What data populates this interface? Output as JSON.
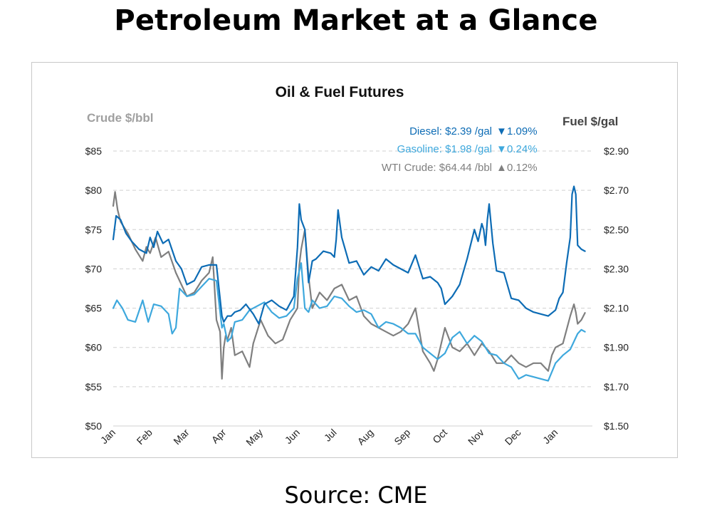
{
  "page_title": "Petroleum Market at a Glance",
  "source_label": "Source: CME",
  "colors": {
    "diesel": "#0d6cb5",
    "gasoline": "#3ea8dd",
    "crude": "#7f7f7f",
    "grid": "#d0d0d0"
  },
  "chart_data": {
    "type": "line",
    "title": "Oil & Fuel Futures",
    "y_left_label": "Crude $/bbl",
    "y_right_label": "Fuel $/gal",
    "y_left_range": [
      50,
      85
    ],
    "y_right_range": [
      1.5,
      2.9
    ],
    "y_left_ticks": [
      "$50",
      "$55",
      "$60",
      "$65",
      "$70",
      "$75",
      "$80",
      "$85"
    ],
    "y_right_ticks": [
      "$1.50",
      "$1.70",
      "$1.90",
      "$2.10",
      "$2.30",
      "$2.50",
      "$2.70",
      "$2.90"
    ],
    "months": [
      "Jan",
      "Feb",
      "Mar",
      "Apr",
      "May",
      "Jun",
      "Jul",
      "Aug",
      "Sep",
      "Oct",
      "Nov",
      "Dec",
      "Jan"
    ],
    "x_range": [
      0,
      13
    ],
    "grid": "horizontal dashed",
    "annotations": [
      {
        "label": "Diesel:",
        "value": "$2.39 /gal",
        "arrow": "▼",
        "change": "1.09%"
      },
      {
        "label": "Gasoline:",
        "value": "$1.98 /gal",
        "arrow": "▼",
        "change": "0.24%"
      },
      {
        "label": "WTI Crude:",
        "value": "$64.44 /bbl",
        "arrow": "▲",
        "change": "0.12%"
      }
    ],
    "series": [
      {
        "axis": "right",
        "x": [
          0,
          0.08,
          0.2,
          0.35,
          0.5,
          0.7,
          0.9,
          1.0,
          1.1,
          1.2,
          1.35,
          1.5,
          1.7,
          1.85,
          2.0,
          2.2,
          2.4,
          2.6,
          2.8,
          2.95,
          3.0,
          3.1,
          3.2,
          3.3,
          3.45,
          3.6,
          3.8,
          3.95,
          4.1,
          4.3,
          4.5,
          4.7,
          4.9,
          5.0,
          5.05,
          5.1,
          5.2,
          5.3,
          5.4,
          5.5,
          5.6,
          5.7,
          5.9,
          6.0,
          6.05,
          6.1,
          6.2,
          6.4,
          6.6,
          6.8,
          7.0,
          7.2,
          7.4,
          7.6,
          7.8,
          8.0,
          8.2,
          8.4,
          8.6,
          8.8,
          8.9,
          9.0,
          9.2,
          9.4,
          9.6,
          9.8,
          9.9,
          10.0,
          10.05,
          10.1,
          10.15,
          10.2,
          10.3,
          10.4,
          10.6,
          10.8,
          11.0,
          11.2,
          11.4,
          11.6,
          11.8,
          12.0,
          12.1,
          12.2,
          12.3,
          12.4,
          12.45,
          12.5,
          12.55,
          12.6,
          12.7,
          12.8
        ],
        "values": [
          2.45,
          2.57,
          2.55,
          2.48,
          2.44,
          2.4,
          2.38,
          2.46,
          2.41,
          2.49,
          2.43,
          2.45,
          2.34,
          2.3,
          2.22,
          2.24,
          2.31,
          2.32,
          2.32,
          2.06,
          2.03,
          2.06,
          2.06,
          2.08,
          2.09,
          2.12,
          2.07,
          2.02,
          2.12,
          2.14,
          2.11,
          2.09,
          2.16,
          2.41,
          2.63,
          2.55,
          2.5,
          2.23,
          2.34,
          2.35,
          2.37,
          2.39,
          2.38,
          2.36,
          2.45,
          2.6,
          2.46,
          2.33,
          2.34,
          2.27,
          2.31,
          2.29,
          2.35,
          2.32,
          2.3,
          2.28,
          2.37,
          2.25,
          2.26,
          2.23,
          2.2,
          2.12,
          2.16,
          2.22,
          2.35,
          2.5,
          2.44,
          2.53,
          2.5,
          2.42,
          2.55,
          2.63,
          2.43,
          2.29,
          2.28,
          2.15,
          2.14,
          2.1,
          2.08,
          2.07,
          2.06,
          2.09,
          2.15,
          2.18,
          2.33,
          2.46,
          2.68,
          2.72,
          2.68,
          2.42,
          2.4,
          2.39
        ],
        "name": "Diesel"
      },
      {
        "axis": "right",
        "x": [
          0,
          0.1,
          0.25,
          0.4,
          0.6,
          0.8,
          0.95,
          1.1,
          1.3,
          1.5,
          1.6,
          1.7,
          1.8,
          2.0,
          2.2,
          2.4,
          2.6,
          2.8,
          2.95,
          3.0,
          3.1,
          3.2,
          3.3,
          3.5,
          3.7,
          3.9,
          4.1,
          4.3,
          4.5,
          4.7,
          4.9,
          5.0,
          5.1,
          5.2,
          5.3,
          5.4,
          5.6,
          5.8,
          6.0,
          6.2,
          6.4,
          6.6,
          6.8,
          7.0,
          7.2,
          7.4,
          7.6,
          7.8,
          8.0,
          8.2,
          8.4,
          8.6,
          8.8,
          9.0,
          9.2,
          9.4,
          9.6,
          9.8,
          10.0,
          10.2,
          10.4,
          10.6,
          10.8,
          11.0,
          11.1,
          11.2,
          11.4,
          11.6,
          11.8,
          12.0,
          12.2,
          12.4,
          12.6,
          12.7,
          12.8
        ],
        "values": [
          2.1,
          2.14,
          2.1,
          2.04,
          2.03,
          2.14,
          2.03,
          2.12,
          2.11,
          2.07,
          1.97,
          2.0,
          2.2,
          2.16,
          2.17,
          2.21,
          2.25,
          2.24,
          2.0,
          2.02,
          1.93,
          1.95,
          2.03,
          2.04,
          2.09,
          2.11,
          2.13,
          2.08,
          2.05,
          2.06,
          2.1,
          2.25,
          2.33,
          2.1,
          2.08,
          2.14,
          2.1,
          2.11,
          2.16,
          2.15,
          2.11,
          2.08,
          2.09,
          2.07,
          2.0,
          2.03,
          2.02,
          2.0,
          1.97,
          1.97,
          1.9,
          1.87,
          1.84,
          1.87,
          1.95,
          1.98,
          1.92,
          1.96,
          1.93,
          1.87,
          1.86,
          1.82,
          1.8,
          1.74,
          1.75,
          1.76,
          1.75,
          1.74,
          1.73,
          1.82,
          1.86,
          1.89,
          1.97,
          1.99,
          1.98
        ],
        "name": "Gasoline"
      },
      {
        "axis": "left",
        "x": [
          0,
          0.05,
          0.12,
          0.2,
          0.4,
          0.6,
          0.8,
          0.9,
          1.0,
          1.15,
          1.3,
          1.5,
          1.7,
          1.8,
          2.0,
          2.2,
          2.4,
          2.6,
          2.7,
          2.8,
          2.9,
          2.95,
          3.0,
          3.05,
          3.1,
          3.2,
          3.3,
          3.5,
          3.7,
          3.8,
          3.9,
          4.0,
          4.2,
          4.4,
          4.6,
          4.8,
          5.0,
          5.05,
          5.1,
          5.2,
          5.3,
          5.4,
          5.6,
          5.8,
          6.0,
          6.2,
          6.4,
          6.6,
          6.8,
          7.0,
          7.2,
          7.4,
          7.6,
          7.8,
          8.0,
          8.2,
          8.4,
          8.6,
          8.7,
          8.8,
          9.0,
          9.2,
          9.4,
          9.6,
          9.8,
          10.0,
          10.2,
          10.4,
          10.6,
          10.8,
          11.0,
          11.2,
          11.4,
          11.6,
          11.8,
          11.9,
          12.0,
          12.2,
          12.4,
          12.5,
          12.55,
          12.6,
          12.7,
          12.8
        ],
        "values": [
          78.0,
          79.8,
          77.5,
          76.0,
          74.5,
          72.5,
          71.0,
          72.8,
          72.0,
          74.0,
          71.5,
          72.2,
          69.5,
          68.5,
          66.5,
          67.0,
          68.5,
          69.5,
          71.5,
          63.5,
          62.0,
          56.0,
          60.0,
          61.5,
          61.0,
          62.5,
          59.0,
          59.5,
          57.5,
          60.5,
          62.0,
          63.5,
          61.5,
          60.5,
          61.0,
          63.5,
          65.0,
          70.5,
          72.5,
          75.0,
          69.0,
          65.0,
          67.0,
          66.0,
          67.5,
          68.0,
          66.0,
          66.5,
          64.0,
          63.0,
          62.5,
          62.0,
          61.5,
          62.0,
          63.0,
          65.0,
          59.5,
          58.0,
          57.0,
          58.5,
          62.5,
          60.0,
          59.5,
          60.5,
          59.0,
          60.5,
          59.5,
          58.0,
          58.0,
          59.0,
          58.0,
          57.5,
          58.0,
          58.0,
          57.0,
          59.0,
          60.0,
          60.5,
          64.0,
          65.5,
          64.5,
          63.0,
          63.5,
          64.4
        ],
        "name": "WTI Crude"
      }
    ]
  }
}
